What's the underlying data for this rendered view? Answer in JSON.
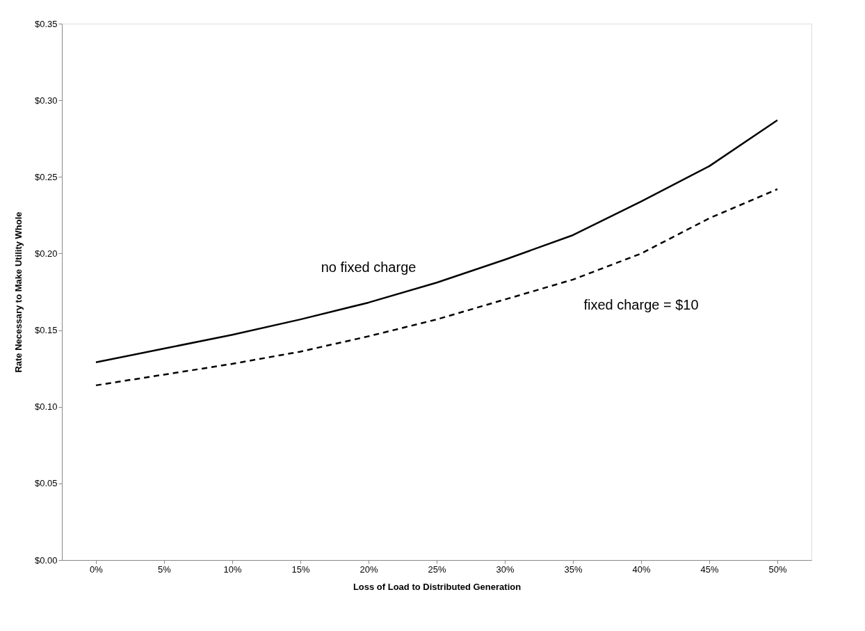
{
  "chart_data": {
    "type": "line",
    "xlabel": "Loss of Load to Distributed Generation",
    "ylabel": "Rate Necessary to Make Utility Whole",
    "categories": [
      "0%",
      "5%",
      "10%",
      "15%",
      "20%",
      "25%",
      "30%",
      "35%",
      "40%",
      "45%",
      "50%"
    ],
    "series": [
      {
        "name": "no fixed charge",
        "color": "#000000",
        "line_style": "solid",
        "values": [
          0.129,
          0.138,
          0.147,
          0.157,
          0.168,
          0.181,
          0.196,
          0.212,
          0.234,
          0.257,
          0.287
        ]
      },
      {
        "name": "fixed charge = $10",
        "color": "#000000",
        "line_style": "dashed",
        "values": [
          0.114,
          0.121,
          0.128,
          0.136,
          0.146,
          0.157,
          0.17,
          0.183,
          0.2,
          0.223,
          0.242
        ]
      }
    ],
    "ylim": [
      0,
      0.35
    ],
    "yticks": [
      {
        "value": 0,
        "label": "$0.00"
      },
      {
        "value": 0.05,
        "label": "$0.05"
      },
      {
        "value": 0.1,
        "label": "$0.10"
      },
      {
        "value": 0.15,
        "label": "$0.15"
      },
      {
        "value": 0.2,
        "label": "$0.20"
      },
      {
        "value": 0.25,
        "label": "$0.25"
      },
      {
        "value": 0.3,
        "label": "$0.30"
      },
      {
        "value": 0.35,
        "label": "$0.35"
      }
    ],
    "grid": false,
    "legend": false,
    "marker": "none"
  }
}
